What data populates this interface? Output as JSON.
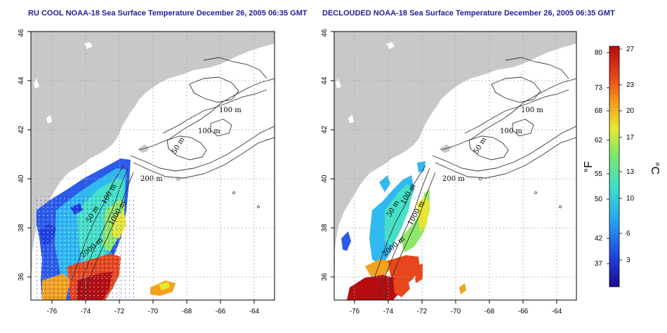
{
  "panels": [
    {
      "title": "RU COOL NOAA-18 Sea Surface Temperature December 26, 2005 06:35 GMT",
      "type": "raw"
    },
    {
      "title": "DECLOUDED NOAA-18 Sea Surface Temperature December 26, 2005 06:35 GMT",
      "type": "declouded"
    }
  ],
  "axes": {
    "lon_range": [
      -77,
      -63
    ],
    "lat_range": [
      35,
      46
    ],
    "lon_ticks": [
      "-76",
      "-74",
      "-72",
      "-70",
      "-68",
      "-66",
      "-64"
    ],
    "lat_ticks": [
      "36",
      "38",
      "40",
      "42",
      "44",
      "46"
    ]
  },
  "contour_labels": {
    "left": [
      "100 m",
      "100 m",
      "50 m",
      "200 m",
      "50 m",
      "100 m",
      "1000 m",
      "2000 m"
    ],
    "right": [
      "100 m",
      "100 m",
      "50 m",
      "200 m",
      "50 m",
      "100 m",
      "1000 m",
      "2000 m"
    ]
  },
  "colorbar": {
    "fahrenheit_ticks": [
      "80",
      "73",
      "68",
      "62",
      "55",
      "50",
      "42",
      "37"
    ],
    "celsius_ticks": [
      "27",
      "23",
      "20",
      "17",
      "13",
      "10",
      "6",
      "3"
    ],
    "fahrenheit_label": "°F",
    "celsius_label": "°C",
    "colors": [
      "#1a0a8c",
      "#1f3fe0",
      "#25a8ee",
      "#3ee0c8",
      "#7ee86a",
      "#e8e830",
      "#f2a21c",
      "#e8461c",
      "#b50d10"
    ]
  }
}
